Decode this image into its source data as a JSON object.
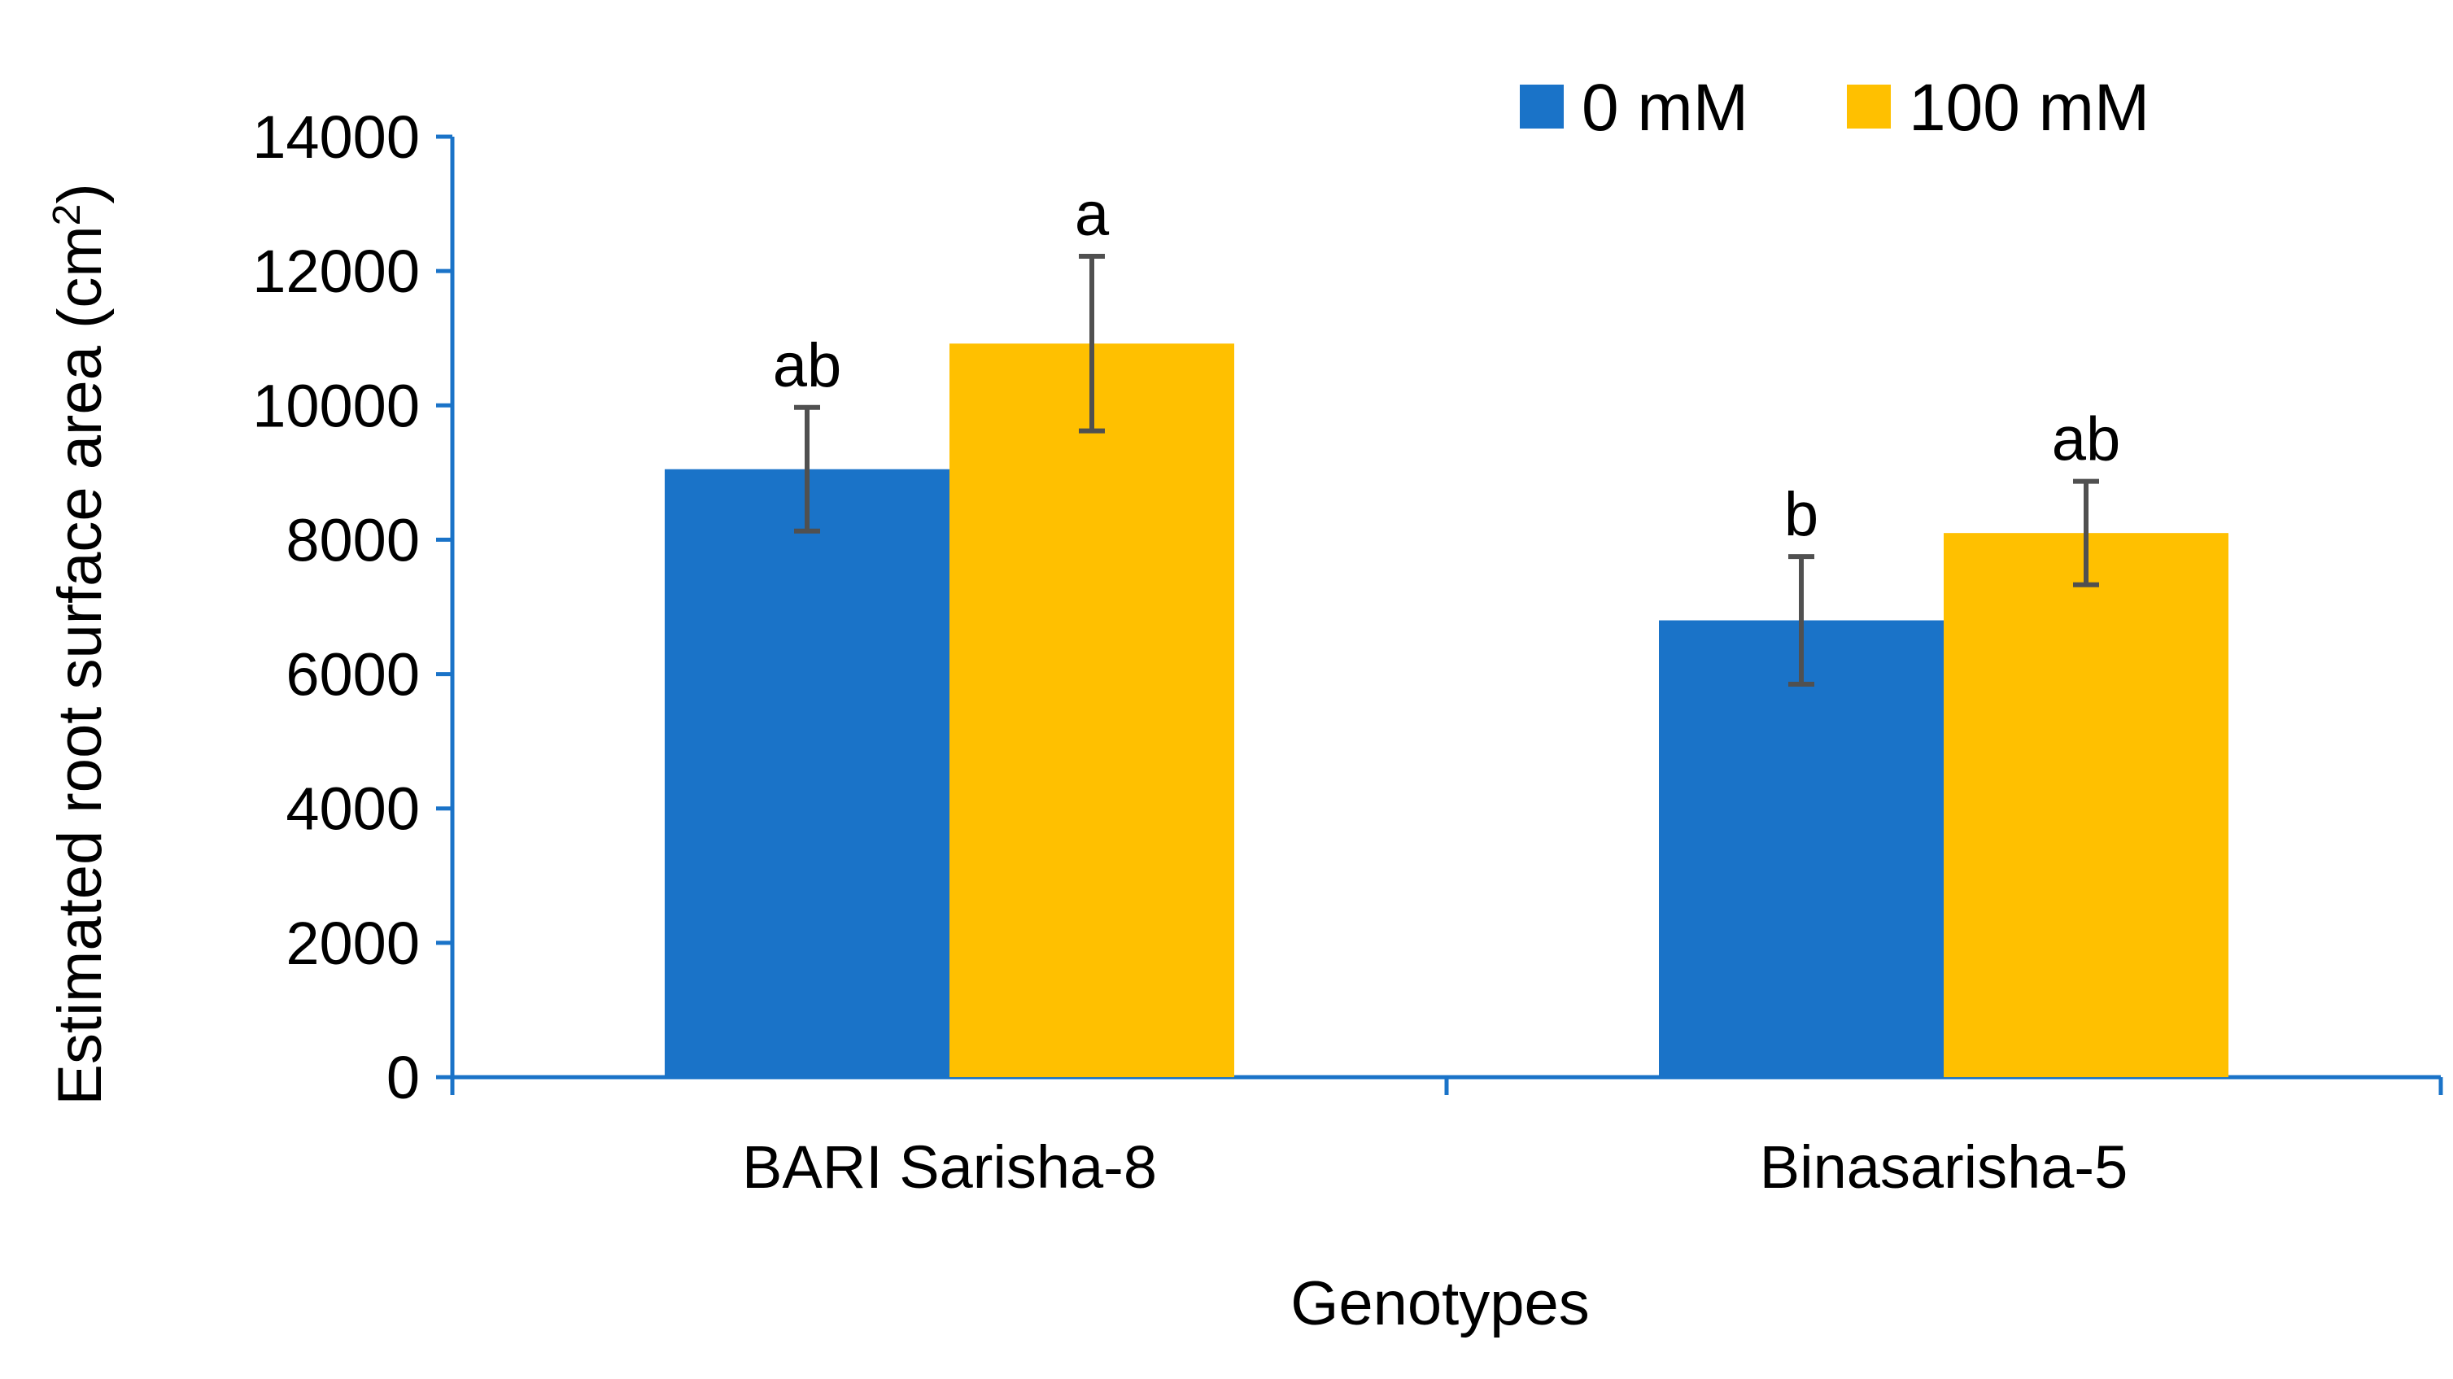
{
  "chart_data": {
    "type": "bar",
    "title": "",
    "xlabel": "Genotypes",
    "ylabel": "Estimated root surface area (cm",
    "ylabel_superscript": "2",
    "ylabel_suffix": ")",
    "ylim": [
      0,
      14000
    ],
    "yticks": [
      0,
      2000,
      4000,
      6000,
      8000,
      10000,
      12000,
      14000
    ],
    "ytick_labels": [
      "0",
      "2000",
      "4000",
      "6000",
      "8000",
      "10000",
      "12000",
      "14000"
    ],
    "categories": [
      "BARI Sarisha-8",
      "Binasarisha-5"
    ],
    "series": [
      {
        "name": "0 mM",
        "color": "#1a73c8",
        "values": [
          9050,
          6800
        ],
        "errors": [
          920,
          950
        ],
        "significance": [
          "ab",
          "b"
        ]
      },
      {
        "name": "100 mM",
        "color": "#ffc000",
        "values": [
          10920,
          8100
        ],
        "errors": [
          1300,
          770
        ],
        "significance": [
          "a",
          "ab"
        ]
      }
    ],
    "legend_position": "top-right",
    "grid": false
  }
}
